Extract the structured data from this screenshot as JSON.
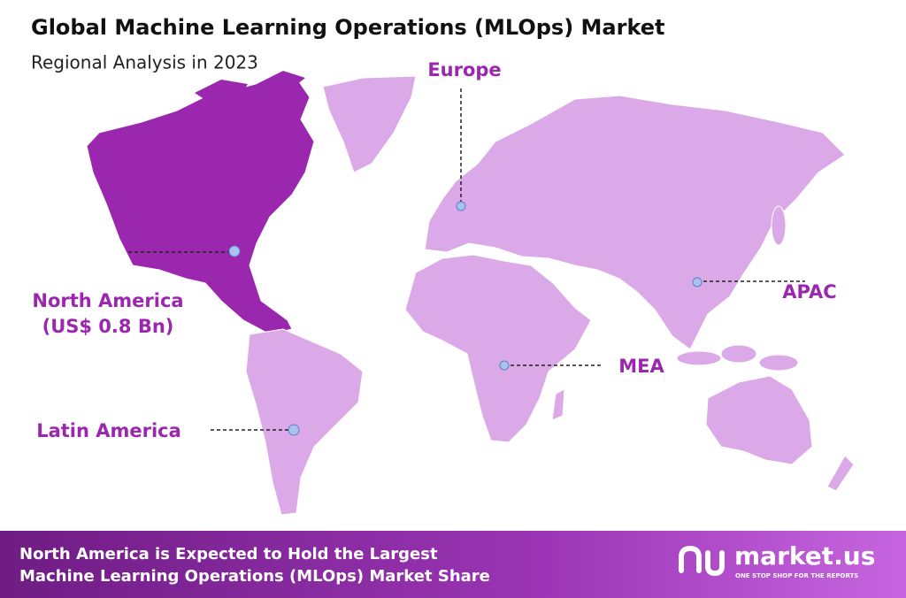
{
  "header": {
    "title": "Global Machine Learning Operations (MLOps) Market",
    "subtitle": "Regional Analysis in 2023"
  },
  "regions": [
    {
      "label": "Europe"
    },
    {
      "label": "North America",
      "detail": "(US$ 0.8 Bn)"
    },
    {
      "label": "APAC"
    },
    {
      "label": "MEA"
    },
    {
      "label": "Latin America"
    }
  ],
  "footer": {
    "lines": [
      "North America is Expected to Hold the Largest",
      "Machine Learning Operations (MLOps) Market Share"
    ],
    "brand": "market.us",
    "tagline": "ONE STOP SHOP FOR THE REPORTS"
  }
}
